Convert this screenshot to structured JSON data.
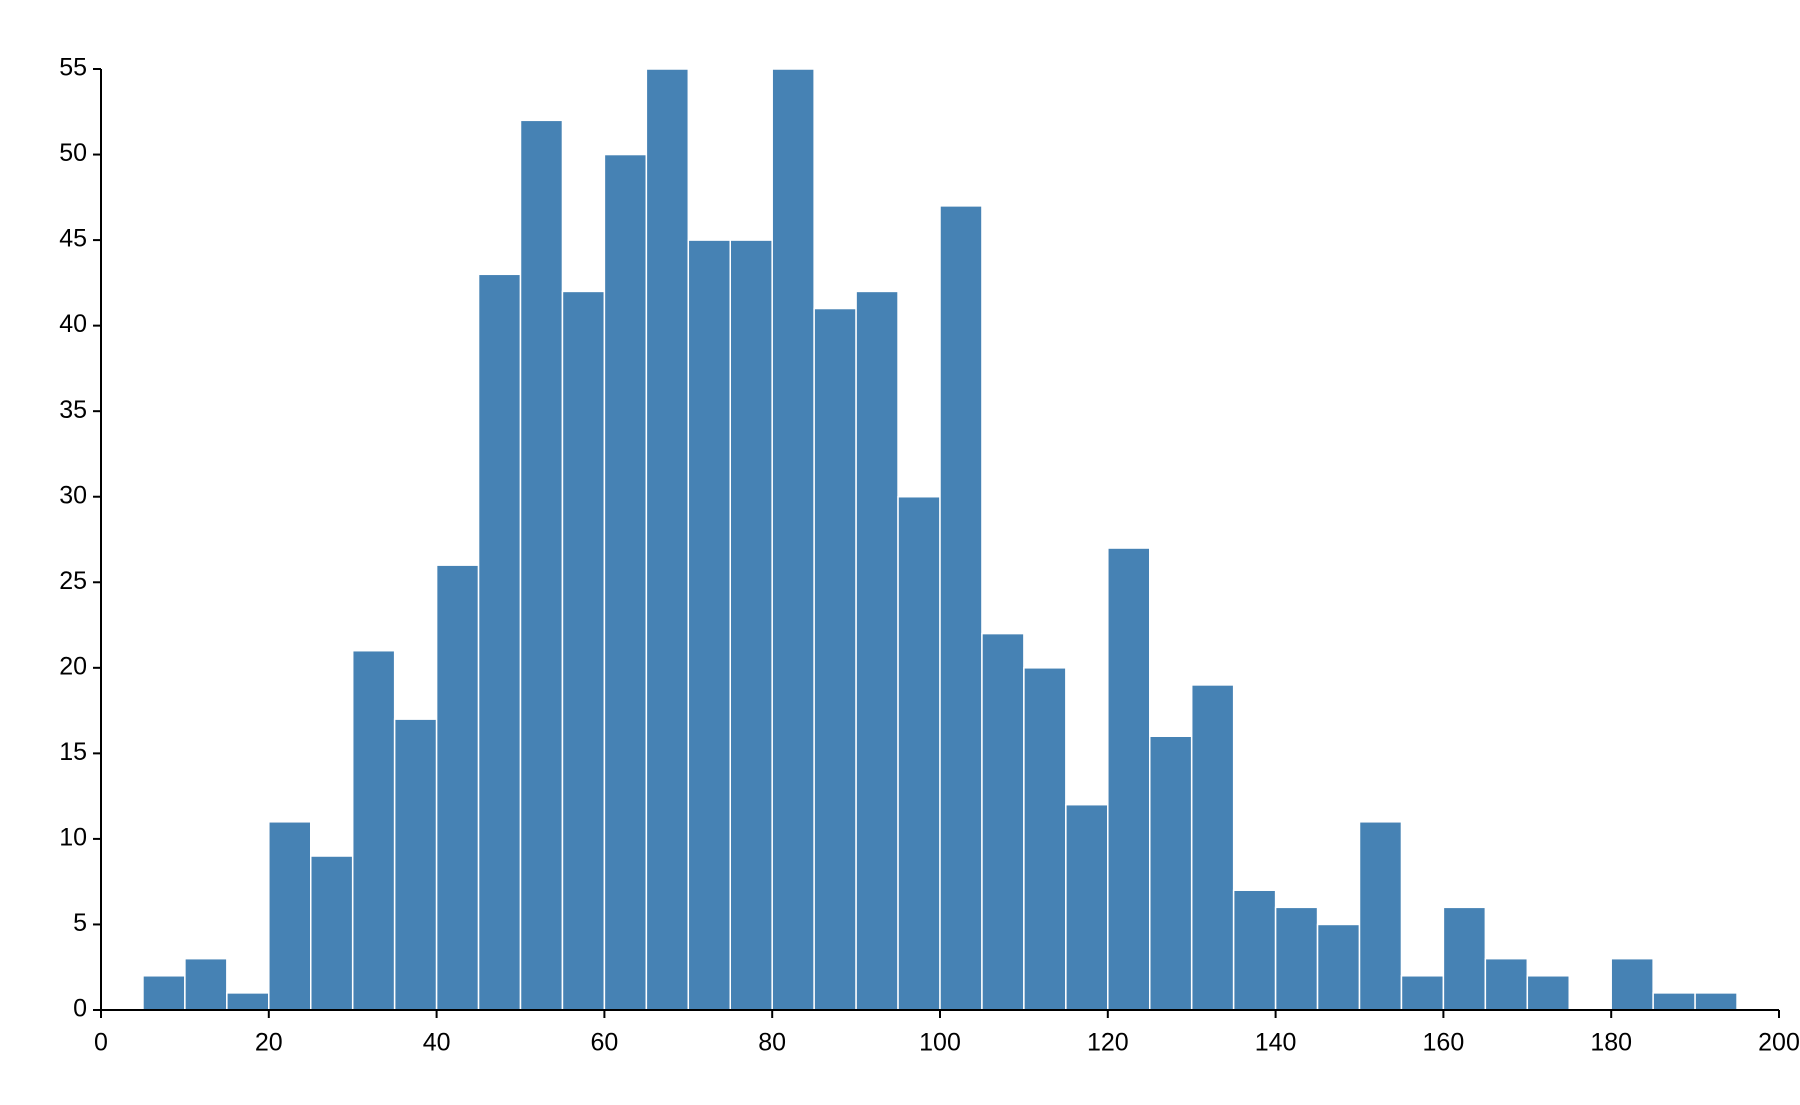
{
  "chart_data": {
    "type": "histogram",
    "color": "#4682b4",
    "bins": [
      5,
      10,
      15,
      20,
      25,
      30,
      35,
      40,
      45,
      50,
      55,
      60,
      65,
      70,
      75,
      80,
      85,
      90,
      95,
      100,
      105,
      110,
      115,
      120,
      125,
      130,
      135,
      140,
      145,
      150,
      155,
      160,
      165,
      170,
      175,
      180,
      185,
      190,
      195
    ],
    "values": [
      2,
      3,
      1,
      11,
      9,
      21,
      17,
      26,
      43,
      52,
      42,
      50,
      55,
      45,
      45,
      55,
      41,
      42,
      30,
      47,
      22,
      20,
      12,
      27,
      16,
      19,
      7,
      6,
      5,
      11,
      2,
      6,
      3,
      2,
      0,
      3,
      1,
      1
    ],
    "xlim": [
      0,
      200
    ],
    "xticks": [
      0,
      20,
      40,
      60,
      80,
      100,
      120,
      140,
      160,
      180,
      200
    ],
    "ylim": [
      0,
      55
    ],
    "yticks": [
      0,
      5,
      10,
      15,
      20,
      25,
      30,
      35,
      40,
      45,
      50,
      55
    ]
  }
}
